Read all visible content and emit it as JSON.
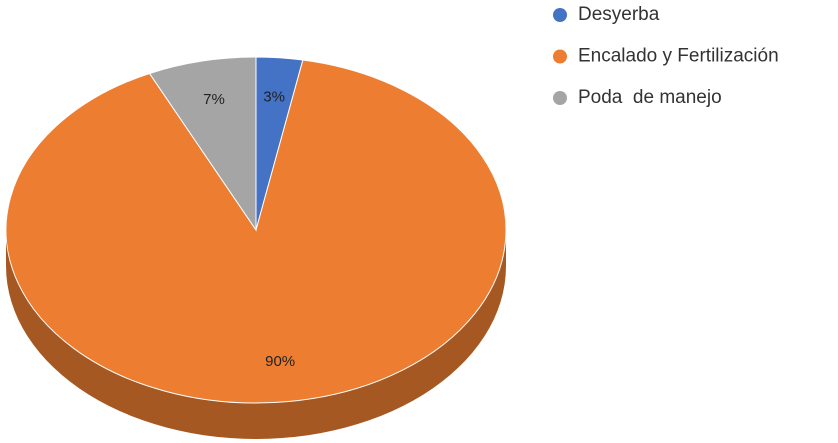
{
  "chart_data": {
    "type": "pie",
    "categories": [
      "Desyerba",
      "Encalado y Fertilización",
      "Poda  de manejo"
    ],
    "values": [
      3,
      90,
      7
    ],
    "value_labels": [
      "3%",
      "90%",
      "7%"
    ],
    "colors": [
      "#4472c4",
      "#ed7d31",
      "#a5a5a5"
    ],
    "legend": "right"
  }
}
